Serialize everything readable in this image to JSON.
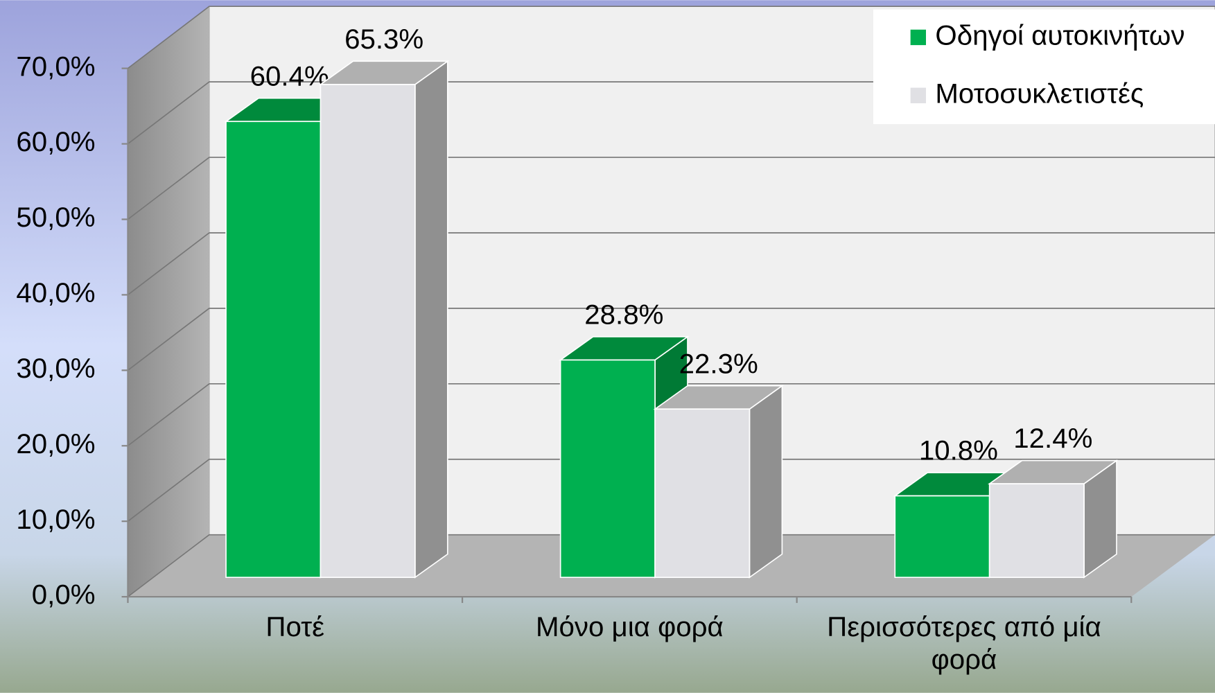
{
  "chart_data": {
    "type": "bar3d",
    "categories": [
      "Ποτέ",
      "Μόνο μια φορά",
      "Περισσότερες από μία φορά"
    ],
    "series": [
      {
        "name": "Οδηγοί αυτοκινήτων",
        "color": "#00b050",
        "values": [
          60.4,
          28.8,
          10.8
        ],
        "value_labels": [
          "60.4%",
          "28.8%",
          "10.8%"
        ]
      },
      {
        "name": "Μοτοσυκλετιστές",
        "color": "#e0e0e4",
        "values": [
          65.3,
          22.3,
          12.4
        ],
        "value_labels": [
          "65.3%",
          "22.3%",
          "12.4%"
        ]
      }
    ],
    "ylim": [
      0,
      70
    ],
    "yticks": [
      {
        "value": 0,
        "label": "0,0%"
      },
      {
        "value": 10,
        "label": "10,0%"
      },
      {
        "value": 20,
        "label": "20,0%"
      },
      {
        "value": 30,
        "label": "30,0%"
      },
      {
        "value": 40,
        "label": "40,0%"
      },
      {
        "value": 50,
        "label": "50,0%"
      },
      {
        "value": 60,
        "label": "60,0%"
      },
      {
        "value": 70,
        "label": "70,0%"
      }
    ],
    "grid": true,
    "legend": "top-right"
  }
}
